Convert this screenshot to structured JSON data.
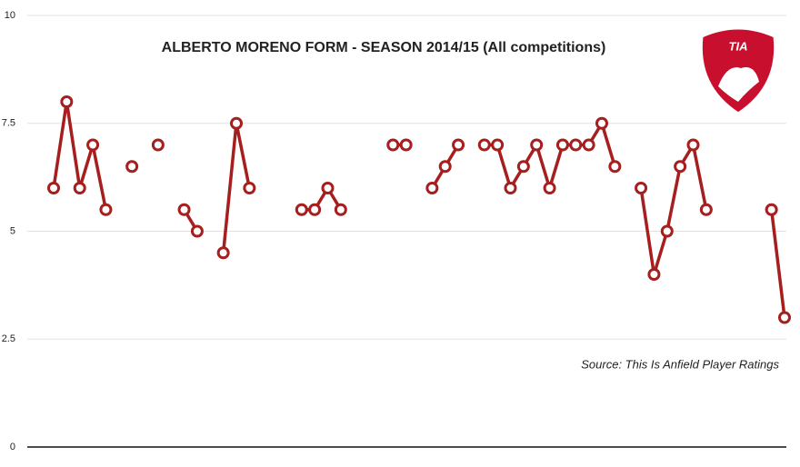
{
  "chart_data": {
    "type": "line",
    "title": "ALBERTO MORENO FORM - SEASON 2014/15 (All competitions)",
    "annotation": "Source: This Is Anfield Player Ratings",
    "logo_text": "TIA",
    "series": [
      {
        "color": "#a61e1e",
        "values": [
          6,
          8,
          6,
          7,
          5.5,
          null,
          6.5,
          null,
          7,
          null,
          5.5,
          5,
          null,
          4.5,
          7.5,
          6,
          null,
          null,
          null,
          5.5,
          5.5,
          6,
          5.5,
          null,
          null,
          null,
          7,
          7,
          null,
          6,
          6.5,
          7,
          null,
          7,
          7,
          6,
          6.5,
          7,
          6,
          7,
          7,
          7,
          7.5,
          6.5,
          null,
          6,
          4,
          5,
          6.5,
          7,
          5.5,
          null,
          null,
          null,
          null,
          5.5,
          3
        ]
      }
    ],
    "ylim": [
      0,
      10
    ],
    "yticks": [
      0,
      2.5,
      5,
      7.5,
      10
    ],
    "grid": true
  }
}
